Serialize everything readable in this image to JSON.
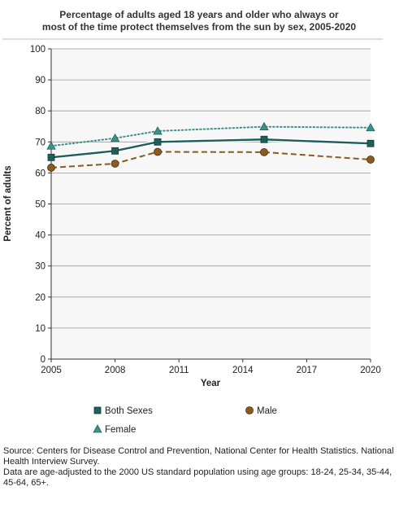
{
  "chart_data": {
    "type": "line",
    "title": [
      "Percentage of adults aged 18 years and older who always or",
      "most of the time protect themselves from the sun by sex, 2005-2020"
    ],
    "xlabel": "Year",
    "ylabel": "Percent of adults",
    "xlim": [
      2005,
      2020
    ],
    "ylim": [
      0,
      100
    ],
    "x_ticks": [
      2005,
      2008,
      2011,
      2014,
      2017,
      2020
    ],
    "y_ticks": [
      0,
      10,
      20,
      30,
      40,
      50,
      60,
      70,
      80,
      90,
      100
    ],
    "grid": "horizontal",
    "legend_position": "bottom",
    "series": [
      {
        "name": "Both Sexes",
        "color": "#1f5f5b",
        "marker": "square",
        "line": "solid",
        "points": [
          [
            2005,
            65.0
          ],
          [
            2008,
            67.1
          ],
          [
            2010,
            70.0
          ],
          [
            2015,
            70.8
          ],
          [
            2020,
            69.5
          ]
        ]
      },
      {
        "name": "Male",
        "color": "#8b5a1e",
        "marker": "circle",
        "line": "dashed",
        "points": [
          [
            2005,
            61.7
          ],
          [
            2008,
            63.0
          ],
          [
            2010,
            66.8
          ],
          [
            2015,
            66.7
          ],
          [
            2020,
            64.3
          ]
        ]
      },
      {
        "name": "Female",
        "color": "#3f8f8a",
        "marker": "triangle",
        "line": "dotted",
        "points": [
          [
            2005,
            68.7
          ],
          [
            2008,
            71.2
          ],
          [
            2010,
            73.5
          ],
          [
            2015,
            74.9
          ],
          [
            2020,
            74.6
          ]
        ]
      }
    ]
  },
  "source": {
    "line1": "Source: Centers for Disease Control and Prevention, National Center for Health Statistics. National Health Interview Survey.",
    "line2": "Data are age-adjusted to the 2000 US standard population using age groups: 18-24, 25-34, 35-44, 45-64, 65+."
  }
}
